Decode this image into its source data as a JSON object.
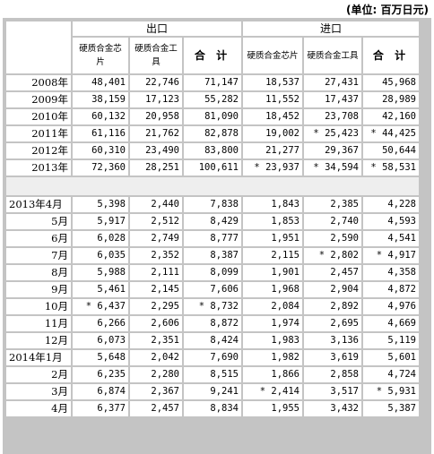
{
  "unit_label": "(单位: 百万日元)",
  "headers": {
    "export": "出口",
    "import": "进口",
    "chip": "硬质合金芯片",
    "tool": "硬质合金工具",
    "total": "合 计"
  },
  "annual": [
    {
      "label": "2008年",
      "v": [
        "48,401",
        "22,746",
        "71,147",
        "18,537",
        "27,431",
        "45,968"
      ]
    },
    {
      "label": "2009年",
      "v": [
        "38,159",
        "17,123",
        "55,282",
        "11,552",
        "17,437",
        "28,989"
      ]
    },
    {
      "label": "2010年",
      "v": [
        "60,132",
        "20,958",
        "81,090",
        "18,452",
        "23,708",
        "42,160"
      ]
    },
    {
      "label": "2011年",
      "v": [
        "61,116",
        "21,762",
        "82,878",
        "19,002",
        "* 25,423",
        "* 44,425"
      ]
    },
    {
      "label": "2012年",
      "v": [
        "60,310",
        "23,490",
        "83,800",
        "21,277",
        "29,367",
        "50,644"
      ]
    },
    {
      "label": "2013年",
      "v": [
        "72,360",
        "28,251",
        "100,611",
        "* 23,937",
        "* 34,594",
        "* 58,531"
      ]
    }
  ],
  "monthly": [
    {
      "label": "2013年4月",
      "full": true,
      "v": [
        "5,398",
        "2,440",
        "7,838",
        "1,843",
        "2,385",
        "4,228"
      ]
    },
    {
      "label": "5月",
      "v": [
        "5,917",
        "2,512",
        "8,429",
        "1,853",
        "2,740",
        "4,593"
      ]
    },
    {
      "label": "6月",
      "v": [
        "6,028",
        "2,749",
        "8,777",
        "1,951",
        "2,590",
        "4,541"
      ]
    },
    {
      "label": "7月",
      "v": [
        "6,035",
        "2,352",
        "8,387",
        "2,115",
        "* 2,802",
        "* 4,917"
      ]
    },
    {
      "label": "8月",
      "v": [
        "5,988",
        "2,111",
        "8,099",
        "1,901",
        "2,457",
        "4,358"
      ]
    },
    {
      "label": "9月",
      "v": [
        "5,461",
        "2,145",
        "7,606",
        "1,968",
        "2,904",
        "4,872"
      ]
    },
    {
      "label": "10月",
      "v": [
        "* 6,437",
        "2,295",
        "* 8,732",
        "2,084",
        "2,892",
        "4,976"
      ]
    },
    {
      "label": "11月",
      "v": [
        "6,266",
        "2,606",
        "8,872",
        "1,974",
        "2,695",
        "4,669"
      ]
    },
    {
      "label": "12月",
      "v": [
        "6,073",
        "2,351",
        "8,424",
        "1,983",
        "3,136",
        "5,119"
      ]
    },
    {
      "label": "2014年1月",
      "full": true,
      "v": [
        "5,648",
        "2,042",
        "7,690",
        "1,982",
        "3,619",
        "5,601"
      ]
    },
    {
      "label": "2月",
      "v": [
        "6,235",
        "2,280",
        "8,515",
        "1,866",
        "2,858",
        "4,724"
      ]
    },
    {
      "label": "3月",
      "v": [
        "6,874",
        "2,367",
        "9,241",
        "* 2,414",
        "3,517",
        "* 5,931"
      ]
    },
    {
      "label": "4月",
      "v": [
        "6,377",
        "2,457",
        "8,834",
        "1,955",
        "3,432",
        "5,387"
      ]
    }
  ]
}
